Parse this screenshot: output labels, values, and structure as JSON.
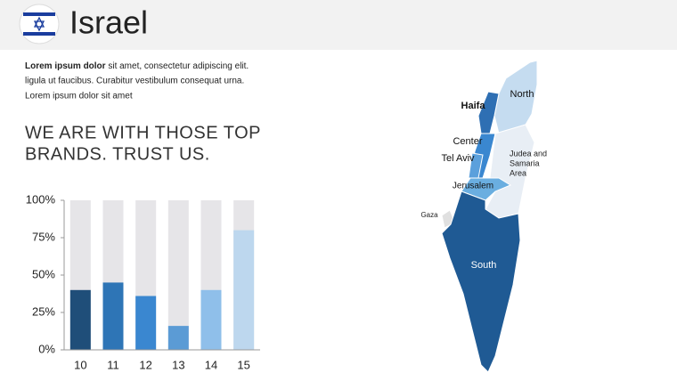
{
  "header": {
    "title": "Israel"
  },
  "text": {
    "bold": "Lorem ipsum dolor",
    "lines": [
      " sit amet, consectetur adipiscing elit.",
      "ligula ut faucibus. Curabitur vestibulum consequat urna.",
      "Lorem ipsum dolor sit amet"
    ],
    "heading": [
      "WE ARE WITH THOSE TOP",
      "BRANDS. TRUST US."
    ]
  },
  "chart_data": {
    "type": "bar",
    "categories": [
      "10",
      "11",
      "12",
      "13",
      "14",
      "15"
    ],
    "values": [
      40,
      45,
      36,
      16,
      40,
      80
    ],
    "colors": [
      "#1f4e79",
      "#2e75b6",
      "#3a87d0",
      "#5b9bd5",
      "#8fbfea",
      "#bdd7ee"
    ],
    "track_color": "#e6e5e8",
    "ylim": [
      0,
      100
    ],
    "yticks": [
      {
        "value": 0,
        "label": "0%"
      },
      {
        "value": 25,
        "label": "25%"
      },
      {
        "value": 50,
        "label": "50%"
      },
      {
        "value": 75,
        "label": "75%"
      },
      {
        "value": 100,
        "label": "100%"
      }
    ]
  },
  "map": {
    "labels": {
      "north": "North",
      "haifa": "Haifa",
      "center": "Center",
      "tel_aviv": "Tel Aviv",
      "judea": [
        "Judea and",
        "Samaria",
        "Area"
      ],
      "jerusalem": "Jerusalem",
      "gaza": "Gaza",
      "south": "South"
    }
  }
}
